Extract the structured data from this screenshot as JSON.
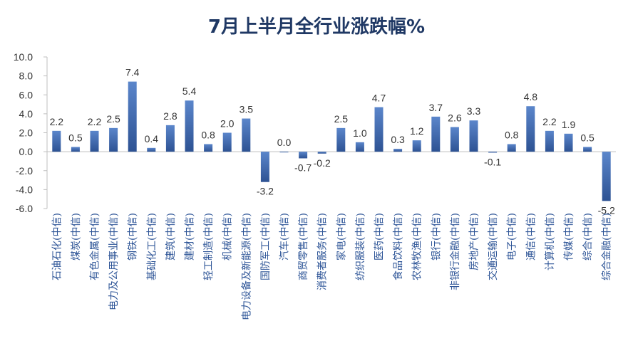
{
  "chart_data": {
    "type": "bar",
    "title": "7月上半月全行业涨跌幅%",
    "ylim": [
      -6,
      10
    ],
    "yticks": [
      "10.0",
      "8.0",
      "6.0",
      "4.0",
      "2.0",
      "0.0",
      "-2.0",
      "-4.0",
      "-6.0"
    ],
    "ytick_values": [
      10,
      8,
      6,
      4,
      2,
      0,
      -2,
      -4,
      -6
    ],
    "grid": false,
    "legend": "none",
    "categories": [
      "石油石化(中信)",
      "煤炭(中信)",
      "有色金属(中信)",
      "电力及公用事业(中信)",
      "钢铁(中信)",
      "基础化工(中信)",
      "建筑(中信)",
      "建材(中信)",
      "轻工制造(中信)",
      "机械(中信)",
      "电力设备及新能源(中信)",
      "国防军工(中信)",
      "汽车(中信)",
      "商贸零售(中信)",
      "消费者服务(中信)",
      "家电(中信)",
      "纺织服装(中信)",
      "医药(中信)",
      "食品饮料(中信)",
      "农林牧渔(中信)",
      "银行(中信)",
      "非银行金融(中信)",
      "房地产(中信)",
      "交通运输(中信)",
      "电子(中信)",
      "通信(中信)",
      "计算机(中信)",
      "传媒(中信)",
      "综合(中信)",
      "综合金融(中信)"
    ],
    "values": [
      2.2,
      0.5,
      2.2,
      2.5,
      7.4,
      0.4,
      2.8,
      5.4,
      0.8,
      2.0,
      3.5,
      -3.2,
      0.0,
      -0.7,
      -0.2,
      2.5,
      1.0,
      4.7,
      0.3,
      1.2,
      3.7,
      2.6,
      3.3,
      -0.1,
      0.8,
      4.8,
      2.2,
      1.9,
      0.5,
      -5.2
    ],
    "labels": [
      "2.2",
      "0.5",
      "2.2",
      "2.5",
      "7.4",
      "0.4",
      "2.8",
      "5.4",
      "0.8",
      "2.0",
      "3.5",
      "-3.2",
      "0.0",
      "-0.7",
      "-0.2",
      "2.5",
      "1.0",
      "4.7",
      "0.3",
      "1.2",
      "3.7",
      "2.6",
      "3.3",
      "-0.1",
      "0.8",
      "4.8",
      "2.2",
      "1.9",
      "0.5",
      "-5.2"
    ],
    "colors": {
      "bar_top": "#5b86cb",
      "bar_bottom": "#2d5293",
      "axis": "#bfbfbf",
      "title": "#1f3864",
      "label": "#2e5597"
    }
  }
}
